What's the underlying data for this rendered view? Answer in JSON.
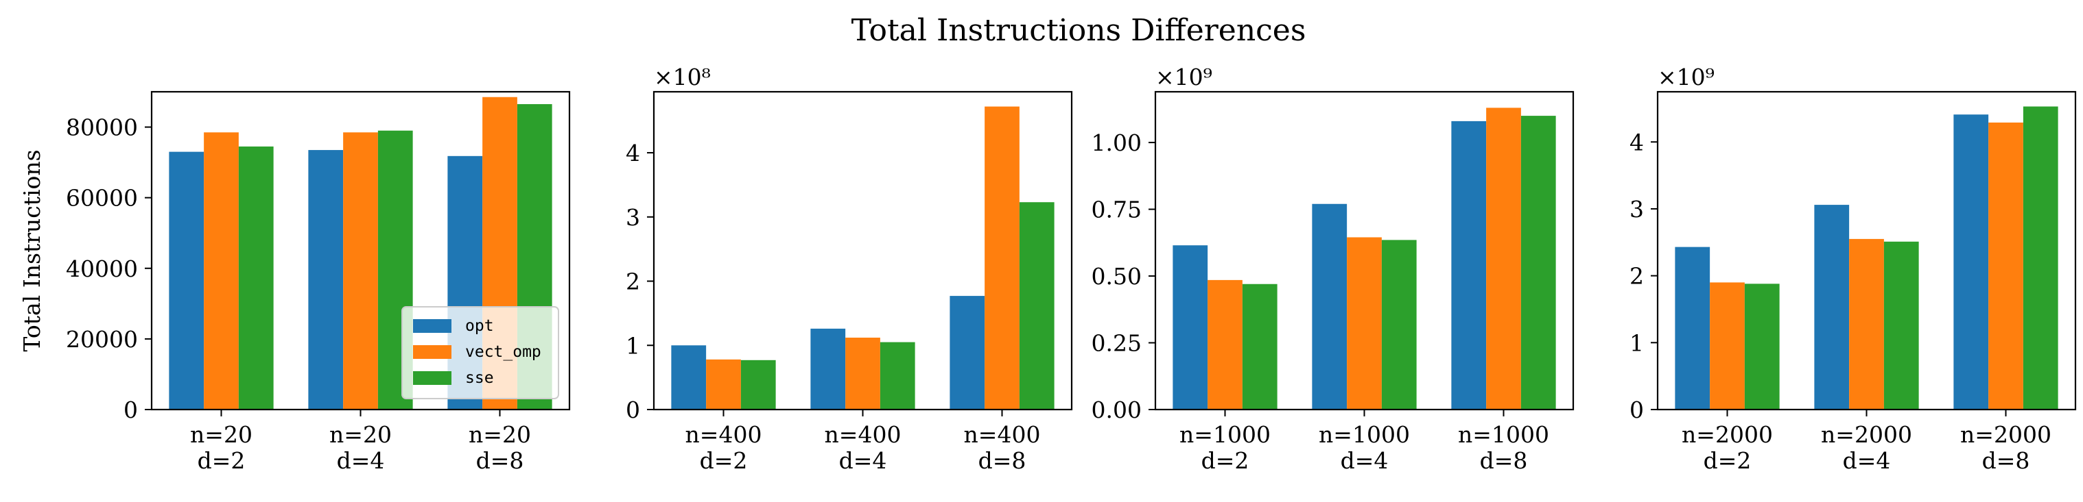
{
  "figure": {
    "title": "Total Instructions Differences"
  },
  "chart_data": [
    {
      "type": "bar",
      "ylabel": "Total Instructions",
      "multiplier_label": "",
      "ylim": [
        0,
        90000
      ],
      "yticks": [
        0,
        20000,
        40000,
        60000,
        80000
      ],
      "ytick_labels": [
        "0",
        "20000",
        "40000",
        "60000",
        "80000"
      ],
      "categories": [
        [
          "n=20",
          "d=2"
        ],
        [
          "n=20",
          "d=4"
        ],
        [
          "n=20",
          "d=8"
        ]
      ],
      "series": [
        {
          "name": "opt",
          "values": [
            73000,
            73500,
            71800
          ]
        },
        {
          "name": "vect_omp",
          "values": [
            78500,
            78500,
            88500
          ]
        },
        {
          "name": "sse",
          "values": [
            74500,
            79000,
            86500
          ]
        }
      ],
      "legend": {
        "location": "lower right",
        "entries": [
          "opt",
          "vect_omp",
          "sse"
        ]
      }
    },
    {
      "type": "bar",
      "ylabel": "",
      "multiplier_label": "×10⁸",
      "ylim": [
        0,
        4.95
      ],
      "yticks": [
        0,
        1,
        2,
        3,
        4
      ],
      "ytick_labels": [
        "0",
        "1",
        "2",
        "3",
        "4"
      ],
      "categories": [
        [
          "n=400",
          "d=2"
        ],
        [
          "n=400",
          "d=4"
        ],
        [
          "n=400",
          "d=8"
        ]
      ],
      "series": [
        {
          "name": "opt",
          "values": [
            1.0,
            1.26,
            1.77
          ]
        },
        {
          "name": "vect_omp",
          "values": [
            0.78,
            1.12,
            4.72
          ]
        },
        {
          "name": "sse",
          "values": [
            0.77,
            1.05,
            3.23
          ]
        }
      ]
    },
    {
      "type": "bar",
      "ylabel": "",
      "multiplier_label": "×10⁹",
      "ylim": [
        0,
        1.19
      ],
      "yticks": [
        0,
        0.25,
        0.5,
        0.75,
        1.0
      ],
      "ytick_labels": [
        "0.00",
        "0.25",
        "0.50",
        "0.75",
        "1.00"
      ],
      "categories": [
        [
          "n=1000",
          "d=2"
        ],
        [
          "n=1000",
          "d=4"
        ],
        [
          "n=1000",
          "d=8"
        ]
      ],
      "series": [
        {
          "name": "opt",
          "values": [
            0.615,
            0.77,
            1.08
          ]
        },
        {
          "name": "vect_omp",
          "values": [
            0.485,
            0.645,
            1.13
          ]
        },
        {
          "name": "sse",
          "values": [
            0.47,
            0.635,
            1.1
          ]
        }
      ]
    },
    {
      "type": "bar",
      "ylabel": "",
      "multiplier_label": "×10⁹",
      "ylim": [
        0,
        4.75
      ],
      "yticks": [
        0,
        1,
        2,
        3,
        4
      ],
      "ytick_labels": [
        "0",
        "1",
        "2",
        "3",
        "4"
      ],
      "categories": [
        [
          "n=2000",
          "d=2"
        ],
        [
          "n=2000",
          "d=4"
        ],
        [
          "n=2000",
          "d=8"
        ]
      ],
      "series": [
        {
          "name": "opt",
          "values": [
            2.43,
            3.06,
            4.41
          ]
        },
        {
          "name": "vect_omp",
          "values": [
            1.9,
            2.55,
            4.29
          ]
        },
        {
          "name": "sse",
          "values": [
            1.88,
            2.51,
            4.53
          ]
        }
      ]
    }
  ],
  "colors": {
    "opt": "#1f77b4",
    "vect_omp": "#ff7f0e",
    "sse": "#2ca02c"
  }
}
